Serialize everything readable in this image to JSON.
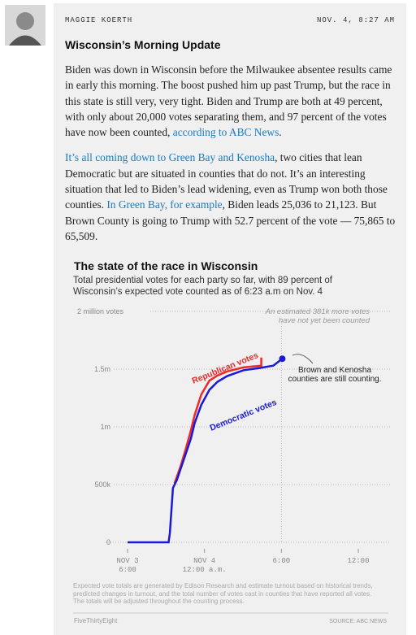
{
  "post": {
    "author": "MAGGIE KOERTH",
    "time": "NOV. 4, 8:27 AM",
    "title": "Wisconsin’s Morning Update",
    "paragraphs": [
      [
        {
          "text": "Biden was down in Wisconsin before the Milwaukee absentee results came in early this morning. The boost pushed him up past Trump, but the race in this state is still very, very tight. Biden and Trump are both at 49 percent, with only about 20,000 votes separating them, and 97 percent of the votes have now been counted, "
        },
        {
          "text": "according to ABC News",
          "link": true
        },
        {
          "text": "."
        }
      ],
      [
        {
          "text": "It’s all coming down to Green Bay and Kenosha",
          "link": true
        },
        {
          "text": ", two cities that lean Democratic but are situated in counties that do not. It’s an interesting situation that led to Biden’s lead widening, even as Trump won both those counties. "
        },
        {
          "text": "In Green Bay, for example",
          "link": true
        },
        {
          "text": ", Biden leads 25,036 to 21,123. But Brown County is going to Trump with 52.7 percent of the vote — 75,865 to 65,509."
        }
      ]
    ]
  },
  "chart_data": {
    "type": "line",
    "title": "The state of the race in Wisconsin",
    "subtitle": "Total presidential votes for each party so far, with 89 percent of Wisconsin’s expected vote counted as of 6:23 a.m on Nov. 4",
    "series": [
      {
        "name": "Democratic votes",
        "color": "#1a1ad6",
        "x": [
          18,
          21.2,
          21.3,
          21.54,
          21.85,
          22.11,
          22.49,
          22.93,
          23.24,
          23.75,
          24.38,
          25.01,
          25.77,
          27.03,
          28.3,
          29.37,
          30.07
        ],
        "values": [
          0,
          0,
          80000,
          470000,
          540000,
          627000,
          750000,
          895000,
          1035000,
          1190000,
          1320000,
          1390000,
          1440000,
          1490000,
          1510000,
          1530000,
          1590000
        ]
      },
      {
        "name": "Republican votes",
        "color": "#ec2a2a",
        "x": [
          21.66,
          22.11,
          22.49,
          22.93,
          23.24,
          23.75,
          24.38,
          25.01,
          25.77,
          27.03,
          28.43,
          28.43
        ],
        "values": [
          510000,
          650000,
          790000,
          965000,
          1105000,
          1280000,
          1400000,
          1445000,
          1480000,
          1515000,
          1530000,
          1600000
        ]
      }
    ],
    "xlim": [
      18,
      36
    ],
    "xticks": [
      {
        "value": 18,
        "label": "NOV 3\n6:00"
      },
      {
        "value": 24,
        "label": "NOV 4\n12:00 a.m."
      },
      {
        "value": 30,
        "label": "6:00"
      },
      {
        "value": 36,
        "label": "12:00"
      }
    ],
    "ylim": [
      0,
      2000000
    ],
    "yticks": [
      0,
      {
        "value": 500000,
        "label": "500k"
      },
      {
        "value": 1000000,
        "label": "1m"
      },
      {
        "value": 1500000,
        "label": "1.5m"
      },
      {
        "value": 2000000,
        "label": "2 million votes"
      }
    ],
    "grid": true,
    "annotations": [
      "An estimated 381k more votes\nhave not yet been counted",
      "Brown and Kenosha\ncounties are still counting."
    ],
    "note": "Expected vote totals are generated by Edison Research and estimate turnout based on historical trends, predicted changes in turnout, and the total number of votes cast in counties that have reported all votes. The totals will be adjusted throughout the counting process.",
    "credit": "FiveThirtyEight",
    "source": "SOURCE: ABC NEWS"
  }
}
